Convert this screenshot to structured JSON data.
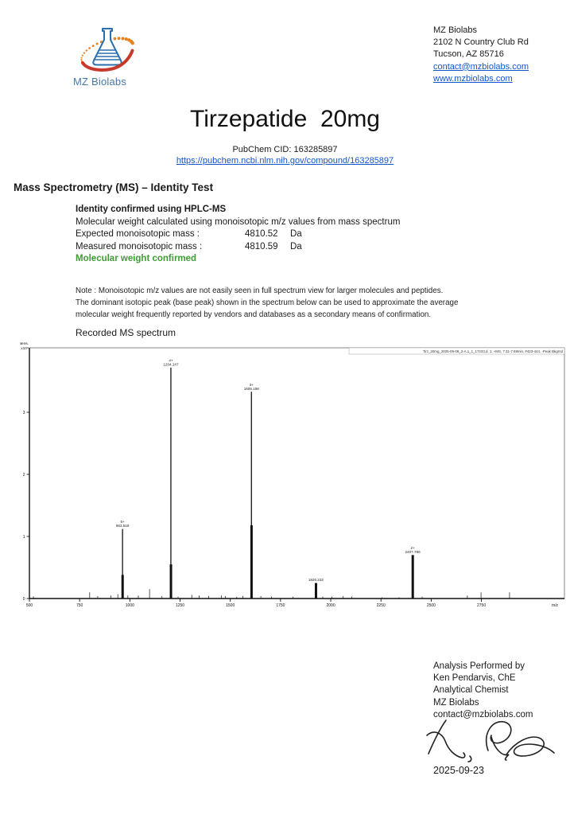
{
  "letterhead": {
    "logo_text": "MZ Biolabs",
    "lines": [
      "MZ Biolabs",
      "2102 N Country Club Rd",
      "Tucson, AZ 85716"
    ],
    "email": "contact@mzbiolabs.com",
    "website": "www.mzbiolabs.com"
  },
  "title": "Tirzepatide  20mg",
  "pubchem": {
    "cid_line": "PubChem CID: 163285897",
    "url": "https://pubchem.ncbi.nlm.nih.gov/compound/163285897"
  },
  "section_heading": "Mass Spectrometry (MS) – Identity Test",
  "identity": {
    "method": "Identity confirmed using HPLC-MS",
    "method_note": "Molecular weight calculated using monoisotopic m/z values from mass spectrum",
    "rows": [
      {
        "label": "Expected monoisotopic mass :",
        "value": "4810.52",
        "unit": "Da"
      },
      {
        "label": "Measured monoisotopic mass :",
        "value": "4810.59",
        "unit": "Da"
      }
    ],
    "result": "Molecular weight confirmed"
  },
  "note": {
    "line1": "Note : Monoisotopic m/z values are not easily seen in full spectrum view for larger molecules and peptides.",
    "line2": "The dominant isotopic peak (base peak) shown in the spectrum below can be used to approximate the average",
    "line3": "molecular weight frequently reported by vendors and databases as a secondary means of confirmation."
  },
  "spectrum_title": "Recorded MS spectrum",
  "chart_data": {
    "type": "bar",
    "title": "Recorded MS spectrum",
    "trace_header": "Tirz_20mg_2025-09-08_2-A,1_1_17233.d, 1: +MS, 7.31-7.68min, #423-444, -Peak Bkgrnd",
    "ylabel_lines": [
      "Intens.",
      "x10⁸"
    ],
    "xlabel": "m/z",
    "xlim": [
      500,
      3160
    ],
    "ylim": [
      0,
      4.05
    ],
    "x_ticks": [
      500,
      750,
      1000,
      1250,
      1500,
      1750,
      2000,
      2250,
      2500,
      2750
    ],
    "y_ticks": [
      0,
      1,
      2,
      3
    ],
    "grid": false,
    "legend": null,
    "peaks": [
      {
        "mz": 963.518,
        "intensity": 1.12,
        "charge": "5+",
        "label": "963.518"
      },
      {
        "mz": 1204.147,
        "intensity": 3.72,
        "charge": "4+",
        "label": "1204.147"
      },
      {
        "mz": 1605.198,
        "intensity": 3.33,
        "charge": "3+",
        "label": "1605.198"
      },
      {
        "mz": 1926.232,
        "intensity": 0.25,
        "charge": "",
        "label": "1926.232"
      },
      {
        "mz": 2407.796,
        "intensity": 0.7,
        "charge": "2+",
        "label": "2407.796"
      }
    ],
    "isotope_cluster_bases": [
      {
        "mz": 963.9,
        "intensity": 0.38
      },
      {
        "mz": 1204.6,
        "intensity": 0.55
      },
      {
        "mz": 1605.7,
        "intensity": 1.18
      },
      {
        "mz": 1926.5,
        "intensity": 0.25
      },
      {
        "mz": 2408.2,
        "intensity": 0.7
      }
    ],
    "noise_peaks": [
      [
        520,
        0.035
      ],
      [
        800,
        0.1
      ],
      [
        840,
        0.04
      ],
      [
        905,
        0.05
      ],
      [
        940,
        0.07
      ],
      [
        990,
        0.05
      ],
      [
        1042,
        0.05
      ],
      [
        1098,
        0.15
      ],
      [
        1160,
        0.04
      ],
      [
        1240,
        0.03
      ],
      [
        1308,
        0.06
      ],
      [
        1345,
        0.05
      ],
      [
        1392,
        0.04
      ],
      [
        1455,
        0.05
      ],
      [
        1475,
        0.04
      ],
      [
        1532,
        0.03
      ],
      [
        1562,
        0.04
      ],
      [
        1652,
        0.04
      ],
      [
        1705,
        0.03
      ],
      [
        1812,
        0.03
      ],
      [
        1960,
        0.03
      ],
      [
        2005,
        0.03
      ],
      [
        2062,
        0.04
      ],
      [
        2105,
        0.03
      ],
      [
        2255,
        0.02
      ],
      [
        2340,
        0.02
      ],
      [
        2455,
        0.03
      ],
      [
        2680,
        0.05
      ],
      [
        2748,
        0.1
      ],
      [
        2890,
        0.1
      ]
    ]
  },
  "analyst": {
    "lines": [
      "Analysis Performed by",
      "Ken Pendarvis, ChE",
      "Analytical Chemist",
      "MZ Biolabs",
      "contact@mzbiolabs.com"
    ],
    "date": "2025-09-23"
  },
  "colors": {
    "link_blue": "#1155cc",
    "confirm_green": "#3f9c35",
    "logo_text_blue": "#4579a8",
    "flask_blue": "#2a6fae",
    "swoosh_red": "#c9392b",
    "swoosh_orange": "#e8821e",
    "peak_black": "#111111"
  }
}
